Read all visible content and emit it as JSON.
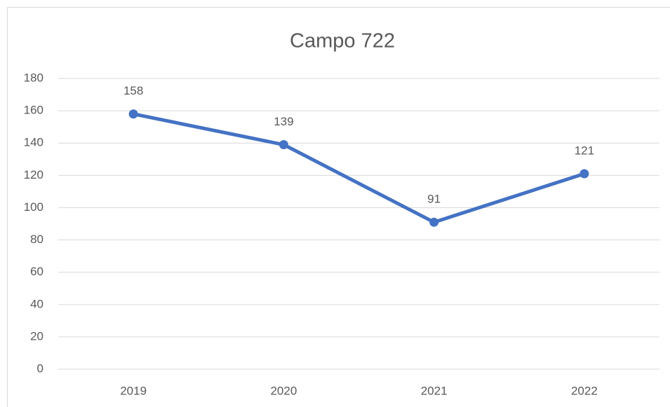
{
  "chart_data": {
    "type": "line",
    "title": "Campo 722",
    "categories": [
      "2019",
      "2020",
      "2021",
      "2022"
    ],
    "values": [
      158,
      139,
      91,
      121
    ],
    "color": "#4472c4",
    "ylim": [
      0,
      180
    ],
    "yticks": [
      0,
      20,
      40,
      60,
      80,
      100,
      120,
      140,
      160,
      180
    ],
    "grid": true
  }
}
